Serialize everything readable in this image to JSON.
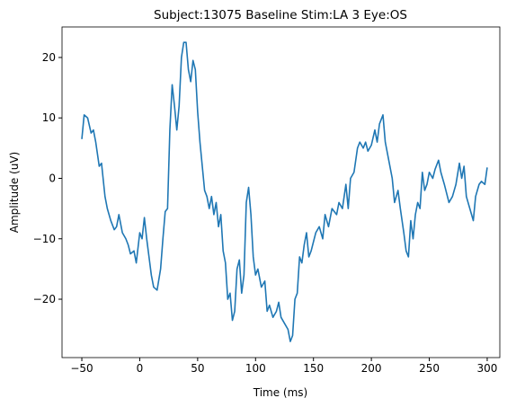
{
  "chart_data": {
    "type": "line",
    "title": "Subject:13075 Baseline Stim:LA 3 Eye:OS",
    "x_label": "Time (ms)",
    "y_label": "Amplitude (uV)",
    "x": [
      -50,
      -48,
      -45,
      -42,
      -40,
      -38,
      -35,
      -33,
      -30,
      -28,
      -25,
      -22,
      -20,
      -18,
      -15,
      -12,
      -10,
      -8,
      -5,
      -3,
      0,
      2,
      4,
      6,
      8,
      10,
      12,
      15,
      18,
      20,
      22,
      24,
      26,
      28,
      30,
      32,
      34,
      36,
      38,
      40,
      42,
      44,
      46,
      48,
      50,
      52,
      54,
      56,
      58,
      60,
      62,
      64,
      66,
      68,
      70,
      72,
      74,
      76,
      78,
      80,
      82,
      84,
      86,
      88,
      90,
      92,
      94,
      96,
      98,
      100,
      102,
      105,
      108,
      110,
      112,
      115,
      118,
      120,
      122,
      125,
      128,
      130,
      132,
      134,
      136,
      138,
      140,
      142,
      144,
      146,
      148,
      150,
      152,
      155,
      158,
      160,
      163,
      166,
      170,
      172,
      175,
      178,
      180,
      182,
      185,
      188,
      190,
      193,
      195,
      197,
      200,
      203,
      205,
      207,
      210,
      212,
      215,
      218,
      220,
      223,
      225,
      228,
      230,
      232,
      234,
      236,
      238,
      240,
      242,
      244,
      246,
      248,
      250,
      253,
      255,
      258,
      260,
      263,
      265,
      267,
      270,
      273,
      276,
      278,
      280,
      282,
      285,
      288,
      290,
      293,
      295,
      298,
      300
    ],
    "series": [
      {
        "color": "#1f77b4",
        "values": [
          6.5,
          10.5,
          10,
          7.5,
          8,
          6,
          2,
          2.5,
          -3,
          -5,
          -7,
          -8.5,
          -8,
          -6,
          -9,
          -10,
          -11,
          -12.5,
          -12,
          -14,
          -9,
          -10,
          -6.5,
          -10,
          -13,
          -16,
          -18,
          -18.5,
          -15,
          -10,
          -5.5,
          -5,
          8,
          15.5,
          12,
          8,
          12,
          20,
          22.5,
          22.5,
          18,
          16,
          19.5,
          18,
          11,
          6,
          2,
          -2,
          -3,
          -5,
          -3,
          -6,
          -4,
          -8,
          -6,
          -12,
          -14,
          -20,
          -19,
          -23.5,
          -22,
          -15,
          -13.5,
          -19,
          -16,
          -4,
          -1.5,
          -6,
          -13,
          -16,
          -15,
          -18,
          -17,
          -22,
          -21,
          -23,
          -22,
          -20.5,
          -23,
          -24,
          -25,
          -27,
          -26,
          -20,
          -19,
          -13,
          -14,
          -11,
          -9,
          -13,
          -12,
          -10.5,
          -9,
          -8,
          -10,
          -6,
          -8,
          -5,
          -6,
          -4,
          -5,
          -1,
          -5,
          0,
          1,
          5,
          6,
          5,
          6,
          4.5,
          5.5,
          8,
          6,
          9,
          10.5,
          6,
          3,
          0,
          -4,
          -2,
          -5,
          -9,
          -12,
          -13,
          -7,
          -10,
          -6,
          -4,
          -5,
          1,
          -2,
          -1,
          1,
          0,
          1.5,
          3,
          1,
          -1,
          -2.5,
          -4,
          -3,
          -1,
          2.5,
          0,
          2,
          -3,
          -5,
          -7,
          -3,
          -1,
          -0.5,
          -1,
          1.8
        ]
      }
    ],
    "xlim": [
      -67.1,
      310.9
    ],
    "ylim": [
      -29.66,
      25.05
    ],
    "xticks": [
      {
        "value": -50,
        "label": "−50"
      },
      0,
      50,
      100,
      150,
      200,
      250,
      300
    ],
    "yticks": [
      {
        "value": -20,
        "label": "−20"
      },
      {
        "value": -10,
        "label": "−10"
      },
      0,
      10,
      20
    ]
  }
}
